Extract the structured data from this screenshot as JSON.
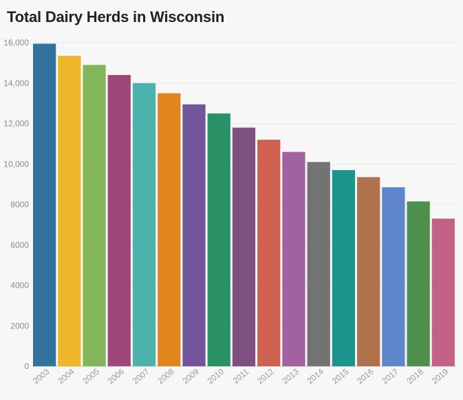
{
  "chart_data": {
    "type": "bar",
    "title": "Total Dairy Herds in Wisconsin",
    "xlabel": "",
    "ylabel": "",
    "ylim": [
      0,
      16000
    ],
    "grid": true,
    "legend": "none",
    "categories": [
      "2003",
      "2004",
      "2005",
      "2006",
      "2007",
      "2008",
      "2009",
      "2010",
      "2011",
      "2012",
      "2013",
      "2014",
      "2015",
      "2016",
      "2017",
      "2018",
      "2019"
    ],
    "values": [
      15950,
      15350,
      14900,
      14400,
      14000,
      13500,
      12950,
      12500,
      11800,
      11200,
      10600,
      10100,
      9700,
      9350,
      8850,
      8150,
      7300
    ],
    "y_ticks": [
      0,
      2000,
      4000,
      6000,
      8000,
      10000,
      12000,
      14000,
      16000
    ],
    "y_tick_labels": [
      "0",
      "2000",
      "4000",
      "6000",
      "8000",
      "10,000",
      "12,000",
      "14,000",
      "16,000"
    ],
    "colors": [
      "#33729e",
      "#efb52b",
      "#83b65a",
      "#9e4778",
      "#4fb1ac",
      "#e1861f",
      "#72559a",
      "#2a9167",
      "#7d5080",
      "#d0604f",
      "#a2619f",
      "#737373",
      "#1c968c",
      "#b0724c",
      "#5f86cb",
      "#4e8f4d",
      "#c46187"
    ]
  }
}
